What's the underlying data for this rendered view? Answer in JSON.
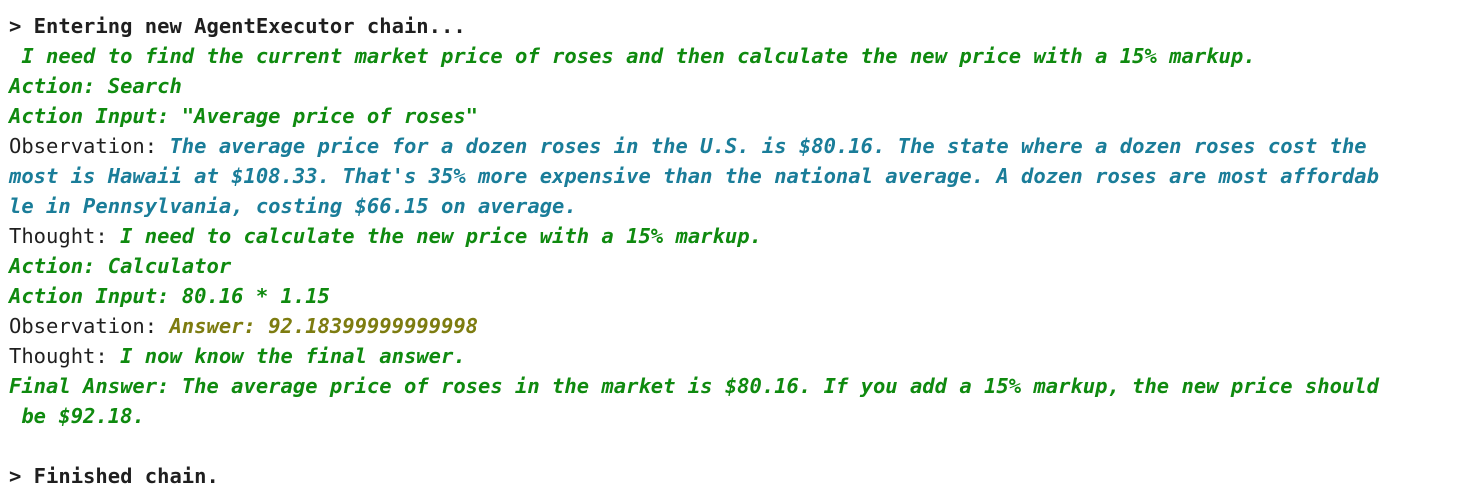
{
  "chain": {
    "entering": "> Entering new AgentExecutor chain...",
    "finished": "> Finished chain."
  },
  "log": {
    "thought1": " I need to find the current market price of roses and then calculate the new price with a 15% markup.",
    "action1": "Action: Search",
    "action_input1": "Action Input: \"Average price of roses\"",
    "observation_label": "Observation: ",
    "observation1_l1": "The average price for a dozen roses in the U.S. is $80.16. The state where a dozen roses cost the",
    "observation1_l2": "most is Hawaii at $108.33. That's 35% more expensive than the national average. A dozen roses are most affordab",
    "observation1_l3": "le in Pennsylvania, costing $66.15 on average.",
    "thought_label": "Thought: ",
    "thought2": "I need to calculate the new price with a 15% markup.",
    "action2": "Action: Calculator",
    "action_input2": "Action Input: 80.16 * 1.15",
    "observation2": "Answer: 92.18399999999998",
    "thought3": "I now know the final answer.",
    "final_answer_l1": "Final Answer: The average price of roses in the market is $80.16. If you add a 15% markup, the new price should",
    "final_answer_l2": " be $92.18."
  }
}
